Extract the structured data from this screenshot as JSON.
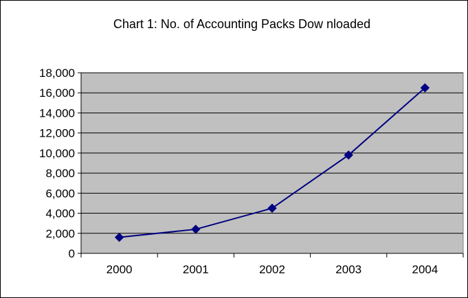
{
  "chart_data": {
    "type": "line",
    "title": "Chart 1: No. of Accounting Packs Dow nloaded",
    "xlabel": "",
    "ylabel": "",
    "categories": [
      "2000",
      "2001",
      "2002",
      "2003",
      "2004"
    ],
    "series": [
      {
        "values": [
          1600,
          2400,
          4500,
          9800,
          16500
        ]
      }
    ],
    "ylim": [
      0,
      18000
    ],
    "yticks": [
      "0",
      "2,000",
      "4,000",
      "6,000",
      "8,000",
      "10,000",
      "12,000",
      "14,000",
      "16,000",
      "18,000"
    ],
    "grid": true,
    "legend": "none",
    "colors": {
      "line": "#000080",
      "marker": "#000080",
      "plot_background": "#c0c0c0",
      "grid": "#000000"
    }
  }
}
